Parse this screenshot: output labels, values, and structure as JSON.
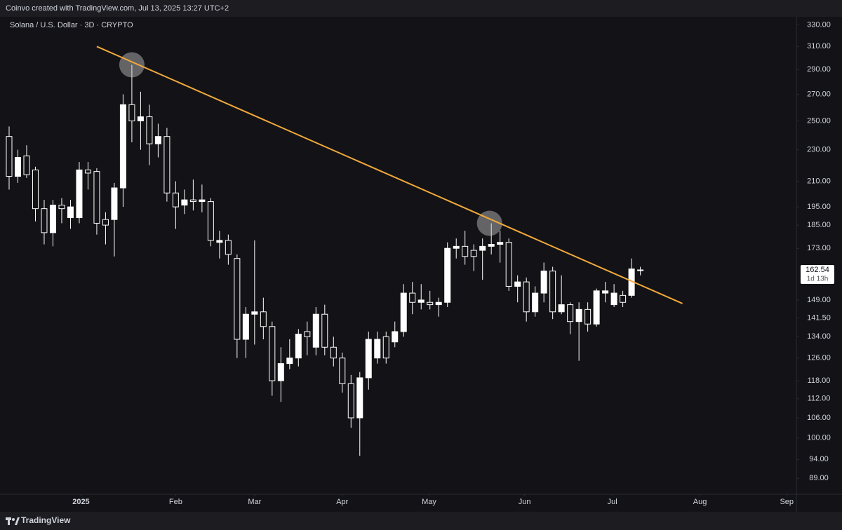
{
  "header": {
    "credit": "Coinvo created with TradingView.com, Jul 13, 2025 13:27 UTC+2"
  },
  "footer": {
    "brand": "TradingView"
  },
  "chart_data": {
    "type": "candlestick",
    "title": "Solana / U.S. Dollar · 3D · CRYPTO",
    "log_scale": true,
    "grid": false,
    "up_color": "#ffffff",
    "down_color": "#131317",
    "categories": [
      null,
      null,
      null,
      null,
      null,
      null,
      null,
      null,
      null,
      null,
      null,
      null,
      null,
      null,
      null,
      null,
      null,
      null,
      null,
      null,
      null,
      null,
      null,
      null,
      null,
      null,
      null,
      null,
      null,
      null,
      null,
      null,
      null,
      null,
      null,
      null,
      null,
      null,
      null,
      null,
      null,
      null,
      null,
      null,
      null,
      null,
      null,
      null,
      null,
      null,
      null,
      null,
      null,
      null,
      null,
      null,
      null,
      null,
      null,
      null,
      null,
      null,
      null,
      null,
      null,
      null,
      null,
      null,
      null,
      null,
      null,
      null,
      null
    ],
    "open": [
      239,
      213,
      226,
      217,
      194,
      181,
      196,
      189,
      189,
      217,
      216,
      188,
      188,
      206,
      262,
      250,
      253,
      234,
      239,
      203,
      196,
      199,
      198,
      198,
      176,
      177,
      168,
      133,
      143,
      144,
      138,
      118,
      124,
      126,
      136,
      130,
      143,
      130,
      126,
      117,
      106,
      119,
      126,
      134,
      132,
      136,
      152,
      148,
      148,
      147,
      148,
      173,
      174,
      172,
      172,
      174,
      175,
      176,
      155,
      157,
      144,
      152,
      162,
      144,
      147,
      140,
      145,
      139,
      152,
      147,
      151,
      151,
      162.5
    ],
    "high": [
      246,
      230,
      233,
      219,
      199,
      199,
      200,
      199,
      222,
      222,
      218,
      192,
      209,
      270,
      294,
      272,
      262,
      248,
      245,
      210,
      205,
      211,
      208,
      200,
      182,
      180,
      170,
      146,
      177,
      150,
      140,
      130,
      133,
      137,
      140,
      146,
      147,
      134,
      128,
      120,
      121,
      136,
      136,
      136,
      140,
      156,
      157,
      156,
      153,
      150,
      176,
      178,
      182,
      175,
      178,
      186,
      182,
      178,
      160,
      159,
      155,
      166,
      164,
      160,
      148,
      148,
      148,
      154,
      157,
      156,
      153,
      168,
      164
    ],
    "low": [
      205,
      209,
      212,
      187,
      175,
      174,
      186,
      183,
      186,
      205,
      180,
      175,
      169,
      195,
      235,
      230,
      220,
      225,
      198,
      183,
      191,
      193,
      192,
      174,
      168,
      165,
      126,
      126,
      131,
      133,
      113,
      111,
      122,
      123,
      127,
      127,
      127,
      123,
      114,
      103,
      95,
      115,
      124,
      124,
      130,
      134,
      143,
      145,
      145,
      142,
      146,
      168,
      165,
      162,
      158,
      170,
      166,
      153,
      148,
      140,
      142,
      148,
      141,
      143,
      135,
      125,
      136,
      138,
      148,
      146,
      146,
      150,
      160
    ],
    "close": [
      213,
      225,
      214,
      194,
      181,
      196,
      194,
      195,
      217,
      215,
      186,
      185,
      206,
      262,
      250,
      253,
      234,
      239,
      203,
      195,
      199,
      198,
      199,
      177,
      177,
      170,
      133,
      143,
      144,
      138,
      118,
      124,
      126,
      135,
      134,
      143,
      130,
      126,
      117,
      106,
      119,
      133,
      133,
      126,
      136,
      152,
      148,
      149,
      147,
      148,
      173,
      174,
      169,
      169,
      174,
      175,
      176,
      155,
      157,
      144,
      152,
      162,
      144,
      147,
      140,
      145,
      139,
      153,
      153,
      152,
      148,
      163,
      162.54
    ],
    "ylim": [
      85,
      335
    ],
    "yticks": [
      {
        "value": 330,
        "label": "330.00"
      },
      {
        "value": 310,
        "label": "310.00"
      },
      {
        "value": 290,
        "label": "290.00"
      },
      {
        "value": 270,
        "label": "270.00"
      },
      {
        "value": 250,
        "label": "250.00"
      },
      {
        "value": 230,
        "label": "230.00"
      },
      {
        "value": 210,
        "label": "210.00"
      },
      {
        "value": 195,
        "label": "195.00"
      },
      {
        "value": 185,
        "label": "185.00"
      },
      {
        "value": 173,
        "label": "173.00"
      },
      {
        "value": 149,
        "label": "149.00"
      },
      {
        "value": 141.5,
        "label": "141.50"
      },
      {
        "value": 134,
        "label": "134.00"
      },
      {
        "value": 126,
        "label": "126.00"
      },
      {
        "value": 118,
        "label": "118.00"
      },
      {
        "value": 112,
        "label": "112.00"
      },
      {
        "value": 106,
        "label": "106.00"
      },
      {
        "value": 100,
        "label": "100.00"
      },
      {
        "value": 94,
        "label": "94.00"
      },
      {
        "value": 89,
        "label": "89.00"
      }
    ],
    "xlim": [
      -1.04,
      89.8
    ],
    "xticks": [
      {
        "value": 8.2,
        "label": "2025"
      },
      {
        "value": 19,
        "label": "Feb"
      },
      {
        "value": 28,
        "label": "Mar"
      },
      {
        "value": 38,
        "label": "Apr"
      },
      {
        "value": 47.9,
        "label": "May"
      },
      {
        "value": 58.8,
        "label": "Jun"
      },
      {
        "value": 68.8,
        "label": "Jul"
      },
      {
        "value": 78.8,
        "label": "Aug"
      },
      {
        "value": 88.7,
        "label": "Sep"
      }
    ],
    "last_price": {
      "value": 162.54,
      "countdown": "1d 13h"
    },
    "trendline": {
      "x": [
        10,
        76.8
      ],
      "y": [
        310,
        147.5
      ],
      "color": "#f2a93b"
    },
    "highlights": {
      "x": [
        14,
        54.8
      ],
      "y": [
        294,
        186
      ]
    }
  }
}
